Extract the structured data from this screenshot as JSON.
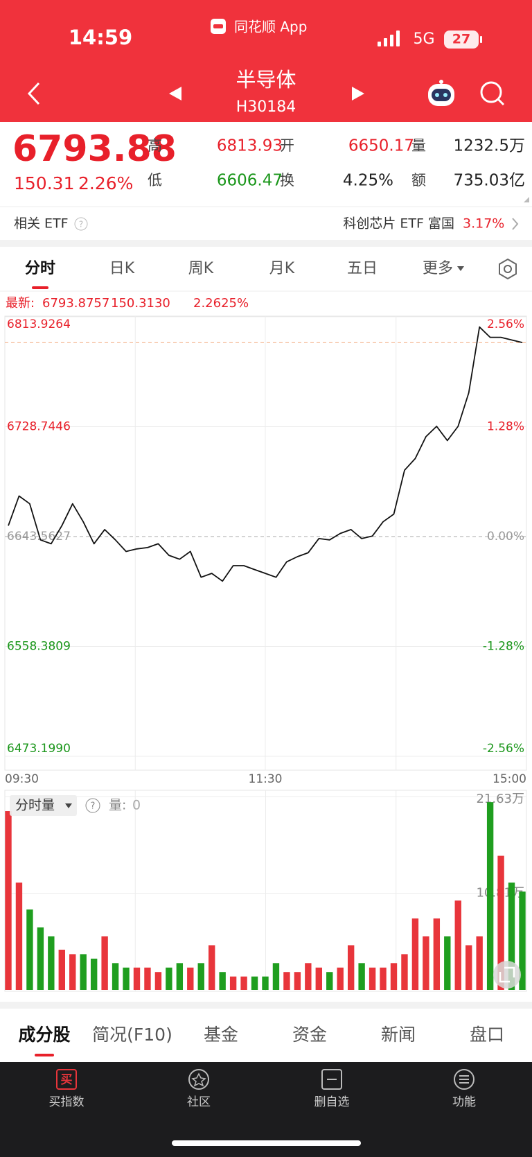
{
  "status_bar": {
    "time": "14:59",
    "app": "同花顺 App",
    "network": "5G",
    "battery": "27"
  },
  "nav": {
    "title": "半导体",
    "code": "H30184"
  },
  "quote": {
    "price": "6793.88",
    "change": "150.31",
    "change_pct": "2.26%",
    "high_label": "高",
    "high": "6813.93",
    "open_label": "开",
    "open": "6650.17",
    "volume_label": "量",
    "volume": "1232.5万",
    "low_label": "低",
    "low": "6606.47",
    "turnover_label": "换",
    "turnover": "4.25%",
    "amount_label": "额",
    "amount": "735.03亿"
  },
  "etf": {
    "label": "相关 ETF",
    "name": "科创芯片 ETF 富国",
    "pct": "3.17%"
  },
  "tabs": [
    "分时",
    "日K",
    "周K",
    "月K",
    "五日",
    "更多"
  ],
  "latest": {
    "label": "最新:",
    "price": "6793.8757",
    "change": "150.3130",
    "pct": "2.2625%"
  },
  "chart_data": {
    "type": "line",
    "xlim": [
      0,
      240
    ],
    "xticks": [
      {
        "value": 0,
        "label": "09:30"
      },
      {
        "value": 120,
        "label": "11:30"
      },
      {
        "value": 240,
        "label": "15:00"
      }
    ],
    "ylim": [
      6473.199,
      6813.9264
    ],
    "yticks": [
      {
        "value": 6473.199,
        "label": "6473.1990"
      },
      6558.3809,
      6643.5627,
      6728.7446,
      6813.9264
    ],
    "y2lim": [
      -2.56,
      2.56
    ],
    "y2ticks": [
      {
        "value": -2.56,
        "label": "-2.56%"
      },
      {
        "value": -1.28,
        "label": "-1.28%"
      },
      {
        "value": 0,
        "label": "0.00%"
      },
      {
        "value": 1.28,
        "label": "1.28%"
      },
      {
        "value": 2.56,
        "label": "2.56%"
      }
    ],
    "grid": true,
    "color": "#111111",
    "x": [
      0,
      5,
      10,
      15,
      20,
      25,
      30,
      35,
      40,
      45,
      50,
      55,
      60,
      65,
      70,
      75,
      80,
      85,
      90,
      95,
      100,
      105,
      110,
      115,
      120,
      125,
      130,
      135,
      140,
      145,
      150,
      155,
      160,
      165,
      170,
      175,
      180,
      185,
      190,
      195,
      200,
      205,
      210,
      215,
      220,
      225,
      230,
      235,
      240
    ],
    "values": [
      6652,
      6675,
      6669,
      6641,
      6638,
      6652,
      6669,
      6655,
      6638,
      6649,
      6641,
      6632,
      6634,
      6635,
      6638,
      6629,
      6626,
      6632,
      6612,
      6615,
      6609,
      6621,
      6621,
      6618,
      6615,
      6612,
      6624,
      6628,
      6631,
      6642,
      6641,
      6646,
      6649,
      6642,
      6644,
      6655,
      6661,
      6695,
      6704,
      6721,
      6729,
      6718,
      6729,
      6755,
      6806,
      6798,
      6798,
      6796,
      6794
    ]
  },
  "volume_chart": {
    "type": "bar",
    "title": "分时量",
    "value_label": "量:",
    "value_readout": "0",
    "ylim": [
      0,
      21.63
    ],
    "yticks": [
      {
        "value": 10.81,
        "label": "10.81万"
      },
      {
        "value": 21.63,
        "label": "21.63万"
      }
    ],
    "up_color": "#e8353b",
    "down_color": "#1f9e1f",
    "values": [
      20,
      12,
      9,
      7,
      6,
      4.5,
      4,
      4,
      3.5,
      6,
      3,
      2.5,
      2.5,
      2.5,
      2,
      2.5,
      3,
      2.5,
      3,
      5,
      2,
      1.5,
      1.5,
      1.5,
      1.5,
      3,
      2,
      2,
      3,
      2.5,
      2,
      2.5,
      5,
      3,
      2.5,
      2.5,
      3,
      4,
      8,
      6,
      8,
      6,
      10,
      5,
      6,
      21,
      15,
      12,
      11
    ]
  },
  "bottom_tabs": [
    "成分股",
    "简况(F10)",
    "基金",
    "资金",
    "新闻",
    "盘口"
  ],
  "bottom_nav": {
    "buy_icon": "买",
    "items": [
      "买指数",
      "社区",
      "删自选",
      "功能"
    ]
  }
}
